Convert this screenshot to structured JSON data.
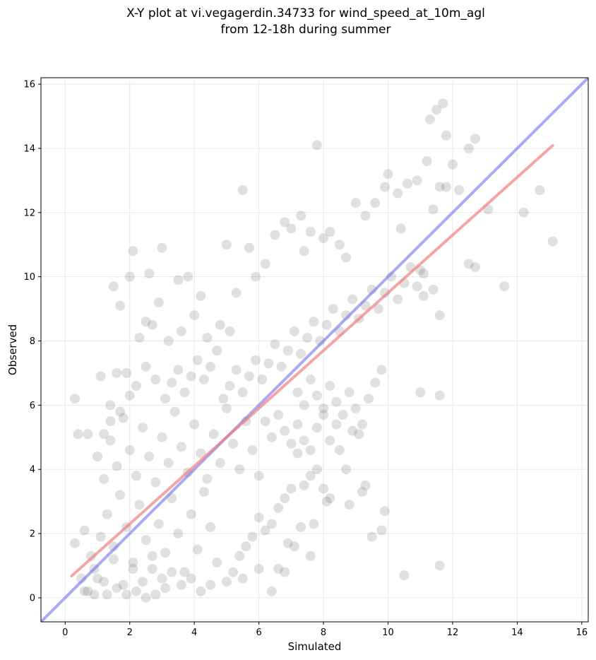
{
  "chart_data": {
    "type": "scatter",
    "title_line1": "X-Y plot at vi.vegagerdin.34733 for wind_speed_at_10m_agl",
    "title_line2": "from 12-18h during summer",
    "xlabel": "Simulated",
    "ylabel": "Observed",
    "xlim": [
      -0.75,
      16.2
    ],
    "ylim": [
      -0.75,
      16.2
    ],
    "xticks": [
      "0",
      "2",
      "4",
      "6",
      "8",
      "10",
      "12",
      "14",
      "16"
    ],
    "yticks": [
      "0",
      "2",
      "4",
      "6",
      "8",
      "10",
      "12",
      "14",
      "16"
    ],
    "grid": true,
    "point_color": "#555555",
    "identity_line_color": "#6f6ff0",
    "fit_line_color": "#f08080",
    "fit_line": {
      "slope": 0.9,
      "intercept": 0.5,
      "x_range": [
        0.2,
        15.1
      ]
    },
    "identity_line": {
      "slope": 1.0,
      "intercept": 0.0
    },
    "series": [
      {
        "values": [
          [
            0.3,
            6.2
          ],
          [
            0.4,
            5.1
          ],
          [
            0.7,
            5.1
          ],
          [
            0.3,
            1.7
          ],
          [
            0.5,
            0.6
          ],
          [
            0.7,
            0.2
          ],
          [
            0.9,
            0.1
          ],
          [
            1.0,
            0.6
          ],
          [
            1.3,
            0.1
          ],
          [
            1.6,
            0.3
          ],
          [
            1.9,
            0.1
          ],
          [
            2.2,
            0.2
          ],
          [
            2.5,
            0.0
          ],
          [
            2.8,
            0.1
          ],
          [
            3.1,
            0.3
          ],
          [
            0.6,
            2.1
          ],
          [
            0.8,
            1.3
          ],
          [
            1.1,
            1.9
          ],
          [
            1.3,
            2.6
          ],
          [
            1.5,
            1.6
          ],
          [
            1.7,
            3.2
          ],
          [
            1.9,
            2.2
          ],
          [
            2.1,
            1.1
          ],
          [
            2.3,
            2.9
          ],
          [
            2.5,
            1.8
          ],
          [
            2.7,
            0.9
          ],
          [
            2.9,
            2.3
          ],
          [
            3.1,
            1.4
          ],
          [
            3.3,
            3.1
          ],
          [
            3.5,
            2.0
          ],
          [
            3.7,
            0.8
          ],
          [
            3.9,
            2.6
          ],
          [
            4.1,
            1.5
          ],
          [
            4.3,
            3.3
          ],
          [
            4.5,
            2.2
          ],
          [
            4.7,
            1.1
          ],
          [
            1.0,
            4.4
          ],
          [
            1.2,
            3.7
          ],
          [
            1.4,
            4.9
          ],
          [
            1.6,
            4.1
          ],
          [
            1.8,
            5.6
          ],
          [
            2.0,
            4.6
          ],
          [
            2.2,
            3.8
          ],
          [
            2.4,
            5.3
          ],
          [
            2.6,
            4.4
          ],
          [
            2.8,
            3.6
          ],
          [
            3.0,
            5.0
          ],
          [
            3.2,
            4.2
          ],
          [
            3.4,
            5.8
          ],
          [
            3.6,
            4.7
          ],
          [
            3.8,
            3.9
          ],
          [
            4.0,
            5.4
          ],
          [
            4.2,
            4.5
          ],
          [
            4.4,
            3.7
          ],
          [
            4.6,
            5.1
          ],
          [
            4.8,
            4.2
          ],
          [
            5.0,
            5.9
          ],
          [
            5.2,
            4.8
          ],
          [
            5.4,
            4.0
          ],
          [
            5.6,
            5.5
          ],
          [
            5.8,
            4.6
          ],
          [
            6.0,
            3.8
          ],
          [
            1.5,
            9.7
          ],
          [
            1.7,
            9.1
          ],
          [
            2.1,
            10.8
          ],
          [
            2.0,
            10.0
          ],
          [
            2.6,
            10.1
          ],
          [
            3.0,
            10.9
          ],
          [
            3.5,
            9.9
          ],
          [
            3.8,
            10.0
          ],
          [
            4.2,
            9.4
          ],
          [
            2.3,
            8.1
          ],
          [
            2.5,
            8.6
          ],
          [
            2.7,
            8.5
          ],
          [
            2.9,
            9.2
          ],
          [
            3.2,
            8.0
          ],
          [
            3.6,
            8.3
          ],
          [
            4.0,
            8.8
          ],
          [
            4.4,
            8.1
          ],
          [
            4.8,
            8.5
          ],
          [
            5.1,
            8.3
          ],
          [
            5.5,
            12.7
          ],
          [
            5.0,
            11.0
          ],
          [
            5.7,
            10.9
          ],
          [
            5.3,
            9.5
          ],
          [
            5.9,
            10.0
          ],
          [
            6.2,
            10.4
          ],
          [
            6.5,
            11.3
          ],
          [
            6.8,
            11.7
          ],
          [
            7.0,
            11.5
          ],
          [
            7.3,
            11.9
          ],
          [
            7.6,
            11.4
          ],
          [
            7.8,
            14.1
          ],
          [
            7.4,
            10.8
          ],
          [
            8.0,
            11.2
          ],
          [
            8.2,
            11.4
          ],
          [
            8.5,
            11.0
          ],
          [
            8.7,
            10.6
          ],
          [
            9.0,
            12.3
          ],
          [
            9.3,
            11.9
          ],
          [
            9.6,
            12.3
          ],
          [
            9.9,
            12.8
          ],
          [
            10.0,
            13.2
          ],
          [
            10.3,
            12.6
          ],
          [
            10.6,
            12.9
          ],
          [
            10.4,
            11.5
          ],
          [
            10.9,
            13.0
          ],
          [
            11.2,
            13.6
          ],
          [
            11.4,
            12.1
          ],
          [
            11.6,
            12.8
          ],
          [
            11.8,
            12.8
          ],
          [
            12.0,
            13.5
          ],
          [
            12.2,
            12.7
          ],
          [
            12.5,
            14.0
          ],
          [
            11.3,
            14.9
          ],
          [
            11.5,
            15.2
          ],
          [
            11.7,
            15.4
          ],
          [
            11.8,
            14.4
          ],
          [
            12.7,
            14.3
          ],
          [
            13.1,
            12.1
          ],
          [
            14.2,
            12.0
          ],
          [
            14.7,
            12.7
          ],
          [
            15.1,
            11.1
          ],
          [
            13.6,
            9.7
          ],
          [
            12.5,
            10.4
          ],
          [
            12.7,
            10.3
          ],
          [
            11.4,
            9.6
          ],
          [
            11.0,
            10.2
          ],
          [
            11.1,
            9.4
          ],
          [
            11.0,
            6.4
          ],
          [
            11.6,
            6.3
          ],
          [
            11.6,
            8.8
          ],
          [
            11.6,
            1.0
          ],
          [
            10.5,
            0.7
          ],
          [
            9.9,
            2.7
          ],
          [
            9.8,
            2.1
          ],
          [
            9.5,
            1.9
          ],
          [
            9.3,
            3.5
          ],
          [
            9.2,
            3.3
          ],
          [
            8.8,
            2.9
          ],
          [
            8.5,
            4.6
          ],
          [
            8.7,
            4.0
          ],
          [
            8.2,
            3.1
          ],
          [
            8.0,
            3.4
          ],
          [
            7.8,
            4.0
          ],
          [
            7.6,
            3.8
          ],
          [
            7.4,
            3.5
          ],
          [
            7.2,
            4.5
          ],
          [
            7.0,
            3.4
          ],
          [
            6.8,
            3.1
          ],
          [
            6.6,
            2.8
          ],
          [
            6.4,
            2.3
          ],
          [
            6.2,
            2.1
          ],
          [
            6.0,
            2.5
          ],
          [
            5.8,
            1.9
          ],
          [
            5.6,
            1.6
          ],
          [
            5.4,
            1.3
          ],
          [
            5.2,
            0.8
          ],
          [
            5.0,
            0.5
          ],
          [
            5.5,
            0.6
          ],
          [
            6.0,
            0.9
          ],
          [
            6.4,
            0.2
          ],
          [
            6.6,
            0.9
          ],
          [
            6.8,
            0.8
          ],
          [
            6.9,
            1.7
          ],
          [
            7.1,
            1.6
          ],
          [
            7.3,
            2.2
          ],
          [
            7.6,
            1.3
          ],
          [
            7.7,
            2.3
          ],
          [
            8.1,
            3.0
          ],
          [
            4.5,
            0.4
          ],
          [
            4.2,
            0.2
          ],
          [
            3.9,
            0.6
          ],
          [
            3.6,
            0.4
          ],
          [
            3.3,
            0.8
          ],
          [
            3.0,
            0.6
          ],
          [
            2.7,
            1.3
          ],
          [
            2.4,
            0.5
          ],
          [
            2.1,
            0.9
          ],
          [
            1.8,
            0.4
          ],
          [
            1.5,
            1.2
          ],
          [
            1.2,
            0.5
          ],
          [
            0.9,
            0.9
          ],
          [
            0.6,
            0.2
          ],
          [
            4.9,
            6.2
          ],
          [
            5.1,
            6.6
          ],
          [
            5.3,
            7.1
          ],
          [
            5.5,
            6.4
          ],
          [
            5.7,
            6.9
          ],
          [
            5.9,
            7.4
          ],
          [
            6.1,
            6.8
          ],
          [
            6.3,
            7.3
          ],
          [
            6.5,
            7.9
          ],
          [
            6.7,
            7.2
          ],
          [
            6.9,
            7.7
          ],
          [
            7.1,
            8.3
          ],
          [
            7.3,
            7.6
          ],
          [
            7.5,
            8.1
          ],
          [
            7.7,
            8.6
          ],
          [
            7.9,
            8.0
          ],
          [
            8.1,
            8.5
          ],
          [
            8.3,
            9.0
          ],
          [
            8.5,
            8.3
          ],
          [
            8.7,
            8.8
          ],
          [
            8.9,
            9.3
          ],
          [
            9.1,
            8.7
          ],
          [
            9.3,
            9.1
          ],
          [
            9.5,
            9.6
          ],
          [
            9.7,
            9.0
          ],
          [
            9.9,
            9.5
          ],
          [
            10.1,
            10.0
          ],
          [
            10.3,
            9.3
          ],
          [
            10.5,
            9.8
          ],
          [
            10.7,
            10.3
          ],
          [
            10.9,
            9.7
          ],
          [
            11.1,
            10.1
          ],
          [
            7.2,
            6.4
          ],
          [
            7.4,
            6.0
          ],
          [
            7.6,
            6.8
          ],
          [
            7.8,
            6.3
          ],
          [
            8.0,
            5.9
          ],
          [
            8.2,
            6.6
          ],
          [
            8.4,
            6.1
          ],
          [
            8.6,
            5.7
          ],
          [
            8.8,
            6.4
          ],
          [
            9.0,
            5.9
          ],
          [
            9.2,
            5.4
          ],
          [
            9.4,
            6.2
          ],
          [
            9.6,
            6.7
          ],
          [
            9.8,
            7.1
          ],
          [
            8.9,
            5.2
          ],
          [
            9.1,
            5.1
          ],
          [
            6.2,
            5.5
          ],
          [
            6.4,
            5.0
          ],
          [
            6.6,
            5.7
          ],
          [
            6.8,
            5.2
          ],
          [
            7.0,
            4.8
          ],
          [
            7.2,
            5.4
          ],
          [
            7.4,
            4.9
          ],
          [
            7.6,
            4.6
          ],
          [
            7.8,
            5.3
          ],
          [
            8.0,
            5.7
          ],
          [
            8.2,
            4.9
          ],
          [
            8.4,
            5.4
          ],
          [
            3.1,
            6.2
          ],
          [
            3.3,
            6.7
          ],
          [
            3.5,
            7.1
          ],
          [
            3.7,
            6.4
          ],
          [
            3.9,
            6.9
          ],
          [
            4.1,
            7.4
          ],
          [
            4.3,
            6.8
          ],
          [
            4.5,
            7.2
          ],
          [
            4.7,
            7.7
          ],
          [
            2.8,
            6.8
          ],
          [
            2.5,
            7.2
          ],
          [
            2.2,
            6.6
          ],
          [
            1.9,
            7.0
          ],
          [
            1.6,
            7.0
          ],
          [
            2.0,
            6.3
          ],
          [
            1.7,
            5.8
          ],
          [
            1.4,
            6.0
          ],
          [
            1.1,
            6.9
          ],
          [
            1.4,
            5.5
          ],
          [
            1.2,
            5.1
          ]
        ]
      }
    ]
  }
}
